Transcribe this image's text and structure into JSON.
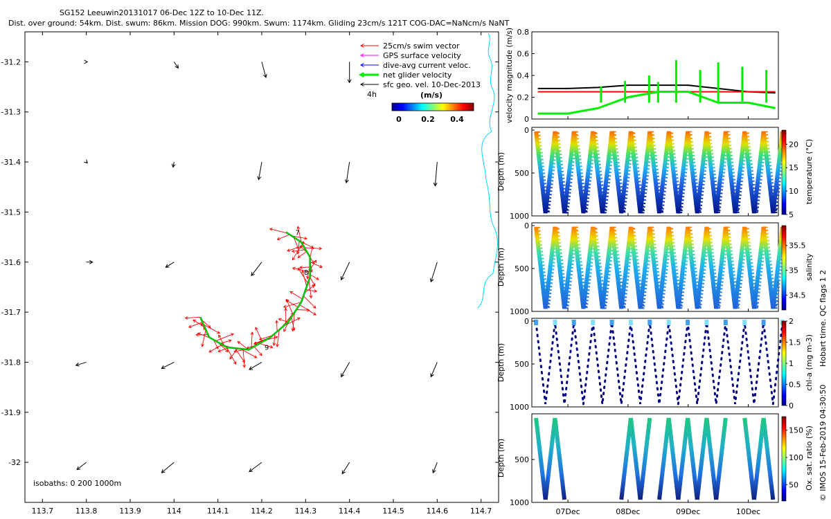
{
  "header": {
    "title": "SG152 Leeuwin20131017 06-Dec 12Z to 10-Dec 11Z.",
    "subtitle": "Dist. over ground: 54km. Dist. swum: 86km. Mission DOG: 990km. Swum: 1174km. Gliding 23cm/s 121T COG-DAC=NaNcm/s NaNT"
  },
  "map": {
    "x_ticks": [
      "113.7",
      "113.8",
      "113.9",
      "114",
      "114.1",
      "114.2",
      "114.3",
      "114.4",
      "114.5",
      "114.6",
      "114.7"
    ],
    "y_ticks": [
      "-31.2",
      "-31.3",
      "-31.4",
      "-31.5",
      "-31.6",
      "-31.7",
      "-31.8",
      "-31.9",
      "-32"
    ],
    "legend": [
      {
        "label": "25cm/s swim vector",
        "color": "#ff0000"
      },
      {
        "label": "GPS surface velocity",
        "color": "#ff00ff"
      },
      {
        "label": "dive-avg current veloc.",
        "color": "#0000ff"
      },
      {
        "label": "net glider velocity",
        "color": "#00ee00"
      },
      {
        "label": "sfc geo. vel. 10-Dec-2013",
        "color": "#000000"
      }
    ],
    "legend_time": "4h",
    "colorbar_label": "(m/s)",
    "colorbar_ticks": [
      "0",
      "0.2",
      "0.4"
    ],
    "day_markers": [
      "7",
      "8",
      "9"
    ],
    "isobaths_label": "isobaths: 0    200   1000m"
  },
  "panels": {
    "velocity": {
      "ylabel": "velocity magnitude (m/s)",
      "y_ticks": [
        "0",
        "0.2",
        "0.4",
        "0.6",
        "0.8"
      ]
    },
    "temperature": {
      "ylabel": "Depth (m)",
      "cbar_label": "temperature (°C)",
      "y_ticks": [
        "0",
        "500",
        "1000"
      ],
      "cbar_ticks": [
        "5",
        "10",
        "15",
        "20"
      ]
    },
    "salinity": {
      "ylabel": "Depth (m)",
      "cbar_label": "salinity",
      "y_ticks": [
        "0",
        "500",
        "1000"
      ],
      "cbar_ticks": [
        "34.5",
        "35",
        "35.5"
      ]
    },
    "chla": {
      "ylabel": "Depth (m)",
      "cbar_label": "chl-a (mg m-3)",
      "y_ticks": [
        "0",
        "500",
        "1000"
      ],
      "cbar_ticks": [
        "0",
        "0.5",
        "1",
        "1.5",
        "2"
      ]
    },
    "oxygen": {
      "ylabel": "Depth (m)",
      "cbar_label": "Ox. sat. ratio (%)",
      "y_ticks": [
        "500",
        "1000"
      ],
      "cbar_ticks": [
        "50",
        "100",
        "150"
      ]
    },
    "x_ticks": [
      "07Dec",
      "08Dec",
      "09Dec",
      "10Dec"
    ]
  },
  "side_notes": {
    "qc": "Hobart time. QC flags 1  2",
    "credit": "© IMOS 15-Feb-2019 04:30:50"
  },
  "chart_data": [
    {
      "type": "scatter",
      "title": "SG152 Leeuwin20131017 06-Dec 12Z to 10-Dec 11Z.",
      "xlim": [
        113.66,
        114.74
      ],
      "ylim": [
        -32.08,
        -31.14
      ],
      "track": [
        [
          114.06,
          -31.71
        ],
        [
          114.08,
          -31.75
        ],
        [
          114.12,
          -31.77
        ],
        [
          114.17,
          -31.775
        ],
        [
          114.22,
          -31.75
        ],
        [
          114.26,
          -31.72
        ],
        [
          114.29,
          -31.68
        ],
        [
          114.31,
          -31.63
        ],
        [
          114.31,
          -31.59
        ],
        [
          114.29,
          -31.56
        ],
        [
          114.255,
          -31.54
        ]
      ],
      "day_marker_positions": [
        [
          114.27,
          -31.54
        ],
        [
          114.29,
          -31.62
        ],
        [
          114.2,
          -31.77
        ]
      ],
      "geostrophic_vectors": [
        {
          "x": 113.8,
          "y": -31.2,
          "u": 0.01,
          "v": 0
        },
        {
          "x": 114,
          "y": -31.2,
          "u": 0.04,
          "v": -0.06
        },
        {
          "x": 114.2,
          "y": -31.2,
          "u": 0.04,
          "v": -0.15
        },
        {
          "x": 114.4,
          "y": -31.2,
          "u": 0,
          "v": -0.2
        },
        {
          "x": 113.8,
          "y": -31.4,
          "u": 0.01,
          "v": -0.01
        },
        {
          "x": 114,
          "y": -31.4,
          "u": -0.01,
          "v": -0.05
        },
        {
          "x": 114.2,
          "y": -31.4,
          "u": -0.03,
          "v": -0.17
        },
        {
          "x": 114.4,
          "y": -31.4,
          "u": -0.03,
          "v": -0.2
        },
        {
          "x": 114.6,
          "y": -31.4,
          "u": -0.02,
          "v": -0.23
        },
        {
          "x": 113.8,
          "y": -31.6,
          "u": 0.06,
          "v": 0
        },
        {
          "x": 114,
          "y": -31.6,
          "u": -0.08,
          "v": -0.05
        },
        {
          "x": 114.2,
          "y": -31.6,
          "u": -0.1,
          "v": -0.13
        },
        {
          "x": 114.4,
          "y": -31.6,
          "u": -0.08,
          "v": -0.17
        },
        {
          "x": 114.6,
          "y": -31.6,
          "u": -0.06,
          "v": -0.19
        },
        {
          "x": 113.8,
          "y": -31.8,
          "u": -0.1,
          "v": -0.03
        },
        {
          "x": 114,
          "y": -31.8,
          "u": -0.12,
          "v": -0.06
        },
        {
          "x": 114.2,
          "y": -31.8,
          "u": -0.12,
          "v": -0.07
        },
        {
          "x": 114.4,
          "y": -31.8,
          "u": -0.08,
          "v": -0.14
        },
        {
          "x": 114.6,
          "y": -31.8,
          "u": -0.06,
          "v": -0.14
        },
        {
          "x": 113.8,
          "y": -32.0,
          "u": -0.09,
          "v": -0.07
        },
        {
          "x": 114,
          "y": -32.0,
          "u": -0.12,
          "v": -0.1
        },
        {
          "x": 114.2,
          "y": -32.0,
          "u": -0.12,
          "v": -0.09
        },
        {
          "x": 114.4,
          "y": -32.0,
          "u": -0.07,
          "v": -0.11
        },
        {
          "x": 114.6,
          "y": -32.0,
          "u": -0.04,
          "v": -0.1
        }
      ]
    },
    {
      "type": "line",
      "ylabel": "velocity magnitude (m/s)",
      "ylim": [
        0,
        0.8
      ],
      "x": [
        6.5,
        7.0,
        7.5,
        8.0,
        8.5,
        9.0,
        9.5,
        10.0,
        10.45
      ],
      "series": [
        {
          "color": "#000000",
          "values": [
            0.28,
            0.28,
            0.29,
            0.31,
            0.31,
            0.31,
            0.28,
            0.25,
            0.24
          ]
        },
        {
          "color": "#ff0000",
          "values": [
            0.25,
            0.25,
            0.25,
            0.25,
            0.25,
            0.25,
            0.25,
            0.25,
            0.25
          ]
        },
        {
          "color": "#00ee00",
          "values": [
            0.05,
            0.05,
            0.1,
            0.2,
            0.25,
            0.25,
            0.15,
            0.15,
            0.1
          ]
        }
      ]
    }
  ]
}
